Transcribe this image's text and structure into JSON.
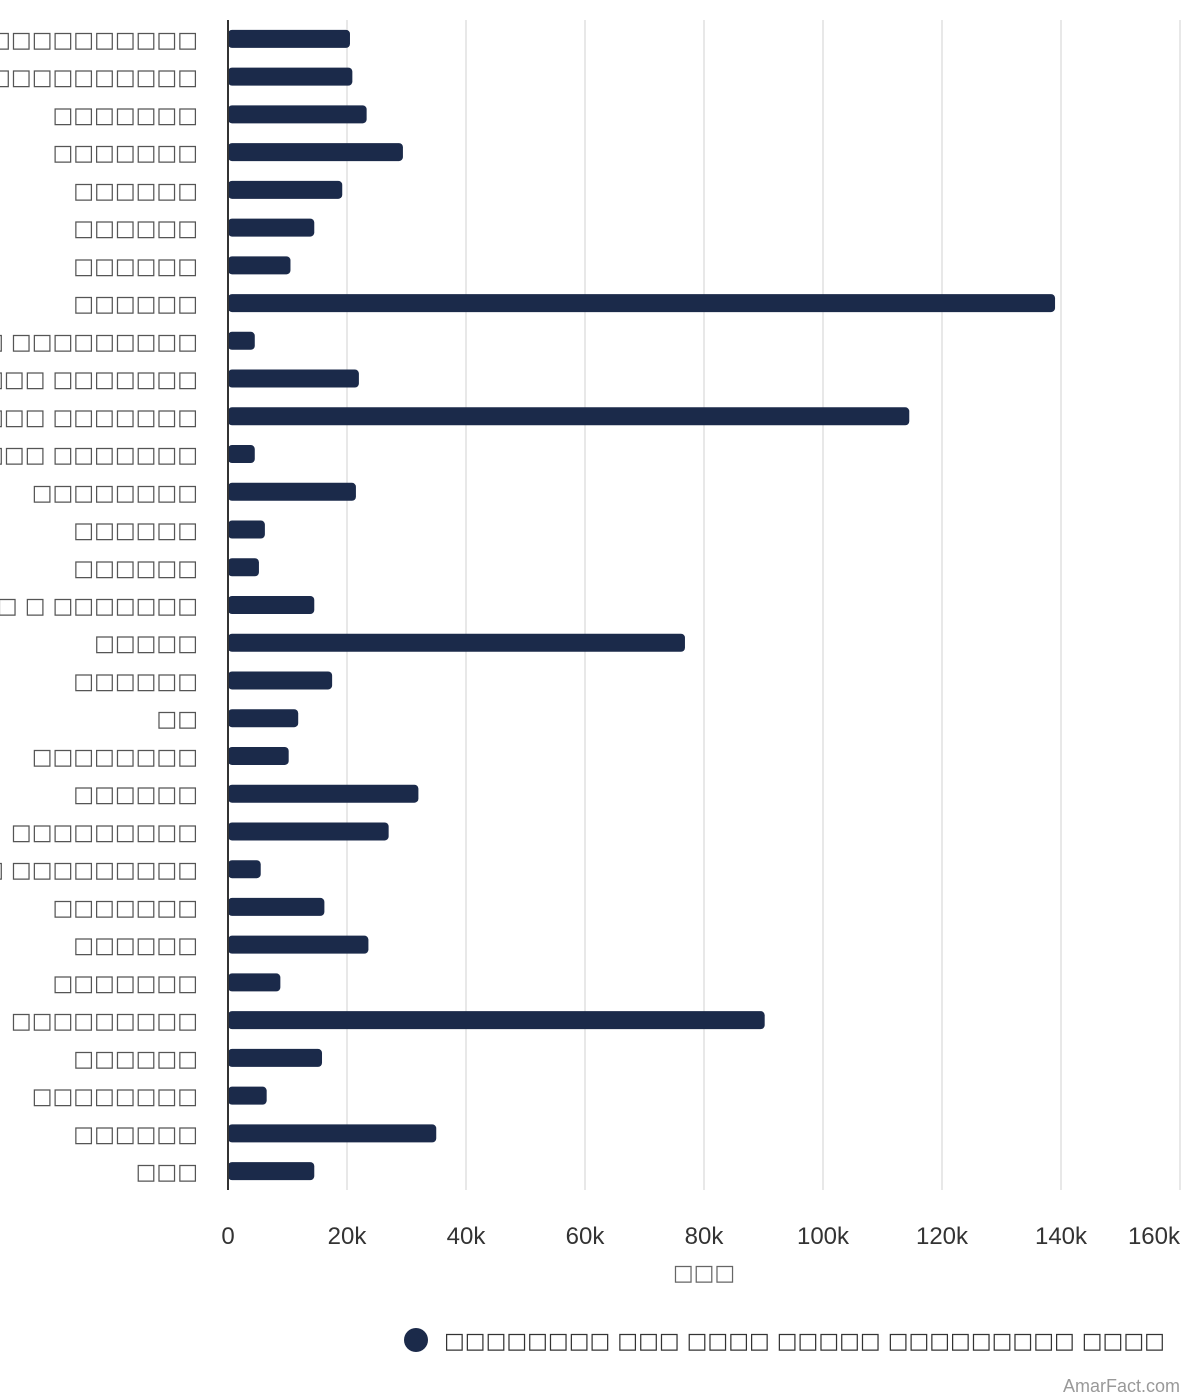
{
  "chart_data": {
    "type": "bar",
    "orientation": "horizontal",
    "categories": [
      "□ □□□□□□□□□□",
      "□ □□□□□□□□□□",
      "□□□□□□□",
      "□□□□□□□",
      "□□□□□□",
      "□□□□□□",
      "□□□□□□",
      "□□□□□□",
      "□ □ □□□□□□□□□",
      "□□□□□ □□□□□□□",
      "□□□□□ □□□□□□□",
      "□□□□□ □□□□□□□",
      "□□□□□□□□",
      "□□□□□□",
      "□□□□□□",
      "□□□ □ □□□□□□□",
      "□□□□□",
      "□□□□□□",
      "□□",
      "□□□□□□□□",
      "□□□□□□",
      "□□□□□□□□□",
      "□ □ □□□□□□□□□",
      "□□□□□□□",
      "□□□□□□",
      "□□□□□□□",
      "□□□□□□□□□",
      "□□□□□□",
      "□□□□□□□□",
      "□□□□□□",
      "□□□"
    ],
    "series": [
      {
        "name": "□□□□□□□□ □□□ □□□□ □□□□□ □□□□□□□□□ □□□□",
        "color": "#1b2a4a",
        "values": [
          20500,
          20900,
          23300,
          29400,
          19200,
          14500,
          10500,
          139000,
          4500,
          22000,
          114500,
          4500,
          21500,
          6200,
          5200,
          14500,
          76800,
          17500,
          11800,
          10200,
          32000,
          27000,
          5500,
          16200,
          23600,
          8800,
          90200,
          15800,
          6500,
          35000,
          14500
        ]
      }
    ],
    "xlim": [
      0,
      160000
    ],
    "xticks": [
      0,
      20000,
      40000,
      60000,
      80000,
      100000,
      120000,
      140000,
      160000
    ],
    "xtick_labels": [
      "0",
      "20k",
      "40k",
      "60k",
      "80k",
      "100k",
      "120k",
      "140k",
      "160k"
    ],
    "xlabel": "□□□",
    "ylabel": "",
    "title": "",
    "grid": "vertical",
    "legend_position": "bottom"
  },
  "credit": "AmarFact.com"
}
